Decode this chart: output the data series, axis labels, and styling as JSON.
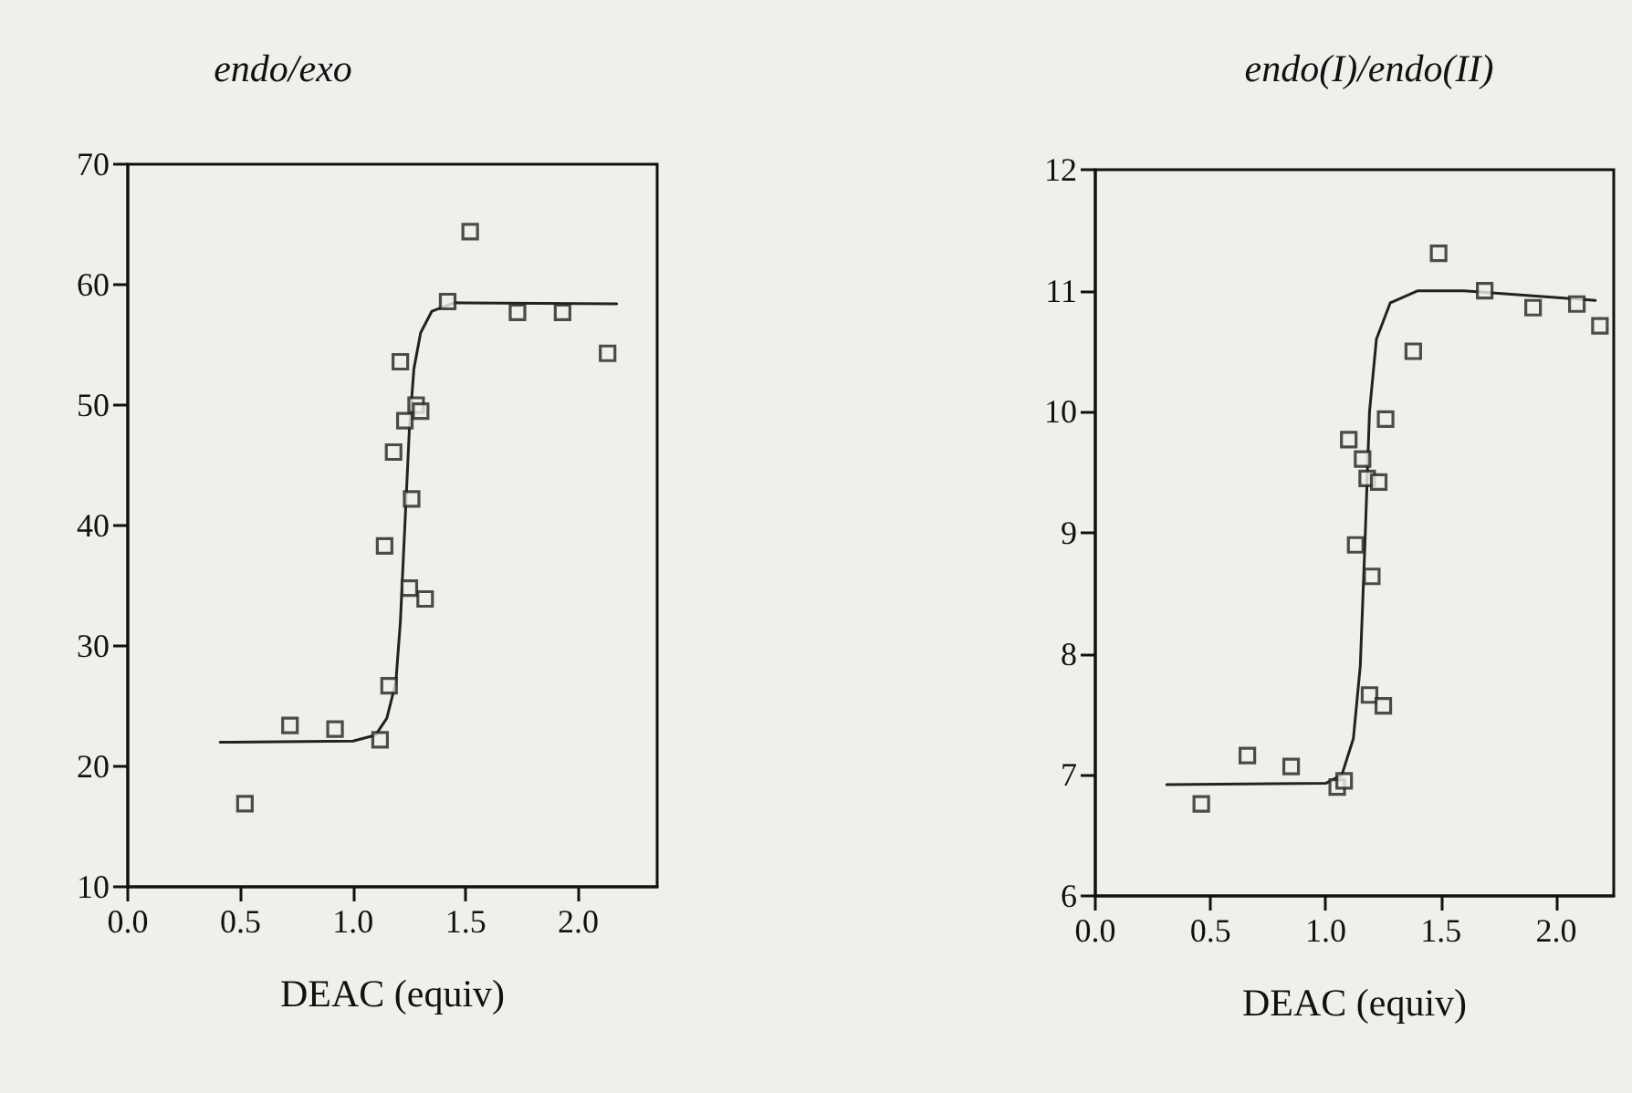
{
  "chart_data": [
    {
      "type": "scatter",
      "title": "endo/exo",
      "xlabel": "DEAC (equiv)",
      "xlim": [
        0,
        2.35
      ],
      "ylim": [
        10,
        70
      ],
      "xticks": [
        {
          "value": 0,
          "label": "0.0"
        },
        {
          "value": 0.5,
          "label": "0.5"
        },
        {
          "value": 1,
          "label": "1.0"
        },
        {
          "value": 1.5,
          "label": "1.5"
        },
        {
          "value": 2,
          "label": "2.0"
        }
      ],
      "yticks": [
        10,
        20,
        30,
        40,
        50,
        60,
        70
      ],
      "grid": false,
      "marker": "square",
      "series": [
        {
          "type": "scatter",
          "color": "#222222",
          "x": [
            0.52,
            0.72,
            0.92,
            1.12,
            1.16,
            1.14,
            1.18,
            1.21,
            1.23,
            1.26,
            1.25,
            1.32,
            1.28,
            1.3,
            1.42,
            1.52,
            1.73,
            1.93,
            2.13
          ],
          "values": [
            16.9,
            23.4,
            23.1,
            22.2,
            26.7,
            38.3,
            46.1,
            53.6,
            48.7,
            42.2,
            34.8,
            33.9,
            50.0,
            49.5,
            58.6,
            64.4,
            57.7,
            57.7,
            54.3
          ]
        },
        {
          "type": "line",
          "color": "#222222",
          "marker": "none",
          "line_style": "solid",
          "x": [
            0.41,
            1.0,
            1.1,
            1.15,
            1.19,
            1.21,
            1.23,
            1.25,
            1.27,
            1.3,
            1.35,
            1.45,
            2.17
          ],
          "values": [
            22.0,
            22.1,
            22.6,
            24,
            27,
            32,
            40,
            48,
            53,
            56,
            57.8,
            58.5,
            58.4
          ]
        }
      ]
    },
    {
      "type": "scatter",
      "title": "endo(I)/endo(II)",
      "xlabel": "DEAC (equiv)",
      "xlim": [
        0,
        2.25
      ],
      "ylim": [
        6,
        12
      ],
      "xticks": [
        {
          "value": 0,
          "label": "0.0"
        },
        {
          "value": 0.5,
          "label": "0.5"
        },
        {
          "value": 1,
          "label": "1.0"
        },
        {
          "value": 1.5,
          "label": "1.5"
        },
        {
          "value": 2,
          "label": "2.0"
        }
      ],
      "yticks": [
        6,
        7,
        8,
        9,
        10,
        11,
        12
      ],
      "grid": false,
      "marker": "square",
      "series": [
        {
          "type": "scatter",
          "color": "#222222",
          "x": [
            0.46,
            0.66,
            0.85,
            1.05,
            1.08,
            1.1,
            1.13,
            1.16,
            1.18,
            1.23,
            1.2,
            1.19,
            1.25,
            1.26,
            1.38,
            1.49,
            1.69,
            1.9,
            2.09,
            2.19
          ],
          "values": [
            6.76,
            7.16,
            7.07,
            6.9,
            6.95,
            9.77,
            8.9,
            9.61,
            9.45,
            9.42,
            8.64,
            7.66,
            7.57,
            9.94,
            10.5,
            11.31,
            11.0,
            10.86,
            10.89,
            10.71
          ]
        },
        {
          "type": "line",
          "color": "#222222",
          "marker": "none",
          "line_style": "solid",
          "x": [
            0.31,
            1.0,
            1.07,
            1.12,
            1.15,
            1.17,
            1.19,
            1.22,
            1.28,
            1.4,
            1.6,
            2.17
          ],
          "values": [
            6.92,
            6.93,
            7.0,
            7.3,
            7.9,
            8.9,
            10.0,
            10.6,
            10.9,
            11.0,
            11.0,
            10.92
          ]
        }
      ]
    }
  ]
}
